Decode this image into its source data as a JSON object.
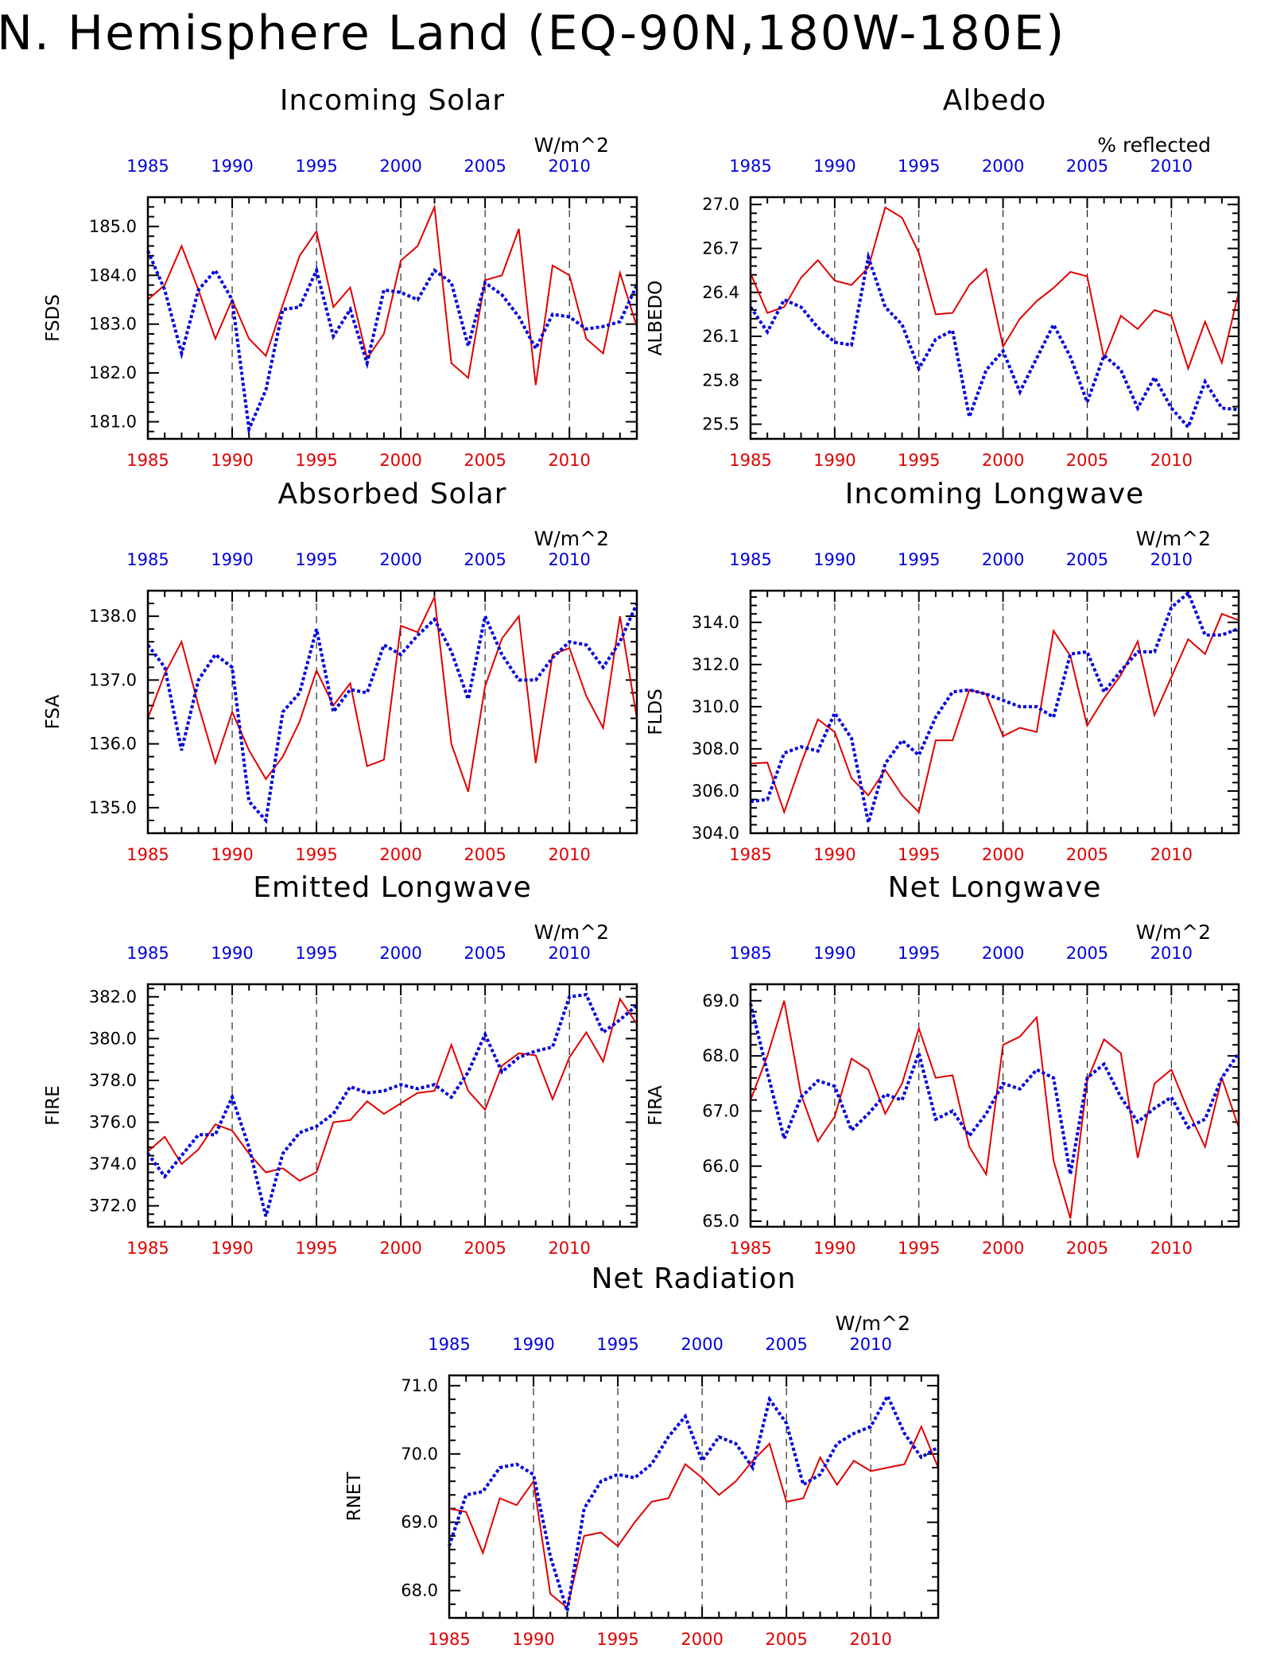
{
  "title": "N. Hemisphere Land (EQ-90N,180W-180E)",
  "colors": {
    "red_series": "#e00000",
    "blue_series": "#0000dd",
    "axis": "#000000"
  },
  "chart_data": [
    {
      "type": "line",
      "title": "Incoming Solar",
      "units": "W/m^2",
      "ylabel": "FSDS",
      "xlim": [
        1985,
        2014
      ],
      "ylim": [
        180.65,
        185.6
      ],
      "yticks": [
        "181.0",
        "182.0",
        "183.0",
        "184.0",
        "185.0"
      ],
      "ytick_values": [
        181,
        182,
        183,
        184,
        185
      ],
      "xticks": [
        "1985",
        "1990",
        "1995",
        "2000",
        "2005",
        "2010"
      ],
      "xtick_values": [
        1985,
        1990,
        1995,
        2000,
        2005,
        2010
      ],
      "x": [
        1985,
        1986,
        1987,
        1988,
        1989,
        1990,
        1991,
        1992,
        1993,
        1994,
        1995,
        1996,
        1997,
        1998,
        1999,
        2000,
        2001,
        2002,
        2003,
        2004,
        2005,
        2006,
        2007,
        2008,
        2009,
        2010,
        2011,
        2012,
        2013,
        2014
      ],
      "series": [
        {
          "style": "solid",
          "color": "#e00000",
          "values": [
            183.5,
            183.8,
            184.6,
            183.7,
            182.7,
            183.5,
            182.7,
            182.35,
            183.4,
            184.4,
            184.9,
            183.35,
            183.75,
            182.3,
            182.8,
            184.3,
            184.6,
            185.4,
            182.2,
            181.9,
            183.9,
            184.0,
            184.95,
            181.75,
            184.2,
            184.0,
            182.7,
            182.4,
            184.05,
            182.95
          ]
        },
        {
          "style": "dotted",
          "color": "#0000dd",
          "values": [
            184.5,
            183.7,
            182.4,
            183.7,
            184.1,
            183.5,
            180.85,
            181.65,
            183.3,
            183.35,
            184.1,
            182.75,
            183.3,
            182.2,
            183.7,
            183.65,
            183.5,
            184.1,
            183.85,
            182.55,
            183.85,
            183.6,
            183.15,
            182.5,
            183.2,
            183.15,
            182.9,
            182.95,
            183.05,
            183.8
          ]
        }
      ]
    },
    {
      "type": "line",
      "title": "Albedo",
      "units": "% reflected",
      "ylabel": "ALBEDO",
      "xlim": [
        1985,
        2014
      ],
      "ylim": [
        25.4,
        27.05
      ],
      "yticks": [
        "25.5",
        "25.8",
        "26.1",
        "26.4",
        "26.7",
        "27.0"
      ],
      "ytick_values": [
        25.5,
        25.8,
        26.1,
        26.4,
        26.7,
        27.0
      ],
      "xticks": [
        "1985",
        "1990",
        "1995",
        "2000",
        "2005",
        "2010"
      ],
      "xtick_values": [
        1985,
        1990,
        1995,
        2000,
        2005,
        2010
      ],
      "x": [
        1985,
        1986,
        1987,
        1988,
        1989,
        1990,
        1991,
        1992,
        1993,
        1994,
        1995,
        1996,
        1997,
        1998,
        1999,
        2000,
        2001,
        2002,
        2003,
        2004,
        2005,
        2006,
        2007,
        2008,
        2009,
        2010,
        2011,
        2012,
        2013,
        2014
      ],
      "series": [
        {
          "style": "solid",
          "color": "#e00000",
          "values": [
            26.53,
            26.26,
            26.3,
            26.5,
            26.62,
            26.48,
            26.45,
            26.57,
            26.98,
            26.91,
            26.67,
            26.25,
            26.26,
            26.45,
            26.56,
            26.03,
            26.22,
            26.34,
            26.43,
            26.54,
            26.51,
            25.95,
            26.24,
            26.15,
            26.28,
            26.24,
            25.88,
            26.2,
            25.92,
            26.4
          ]
        },
        {
          "style": "dotted",
          "color": "#0000dd",
          "values": [
            26.3,
            26.13,
            26.35,
            26.3,
            26.16,
            26.06,
            26.04,
            26.64,
            26.3,
            26.18,
            25.88,
            26.08,
            26.14,
            25.55,
            25.87,
            26.0,
            25.72,
            25.95,
            26.18,
            25.96,
            25.65,
            25.97,
            25.87,
            25.61,
            25.82,
            25.61,
            25.48,
            25.79,
            25.61,
            25.6
          ]
        }
      ]
    },
    {
      "type": "line",
      "title": "Absorbed Solar",
      "units": "W/m^2",
      "ylabel": "FSA",
      "xlim": [
        1985,
        2014
      ],
      "ylim": [
        134.6,
        138.4
      ],
      "yticks": [
        "135.0",
        "136.0",
        "137.0",
        "138.0"
      ],
      "ytick_values": [
        135,
        136,
        137,
        138
      ],
      "xticks": [
        "1985",
        "1990",
        "1995",
        "2000",
        "2005",
        "2010"
      ],
      "xtick_values": [
        1985,
        1990,
        1995,
        2000,
        2005,
        2010
      ],
      "x": [
        1985,
        1986,
        1987,
        1988,
        1989,
        1990,
        1991,
        1992,
        1993,
        1994,
        1995,
        1996,
        1997,
        1998,
        1999,
        2000,
        2001,
        2002,
        2003,
        2004,
        2005,
        2006,
        2007,
        2008,
        2009,
        2010,
        2011,
        2012,
        2013,
        2014
      ],
      "series": [
        {
          "style": "solid",
          "color": "#e00000",
          "values": [
            136.4,
            137.1,
            137.6,
            136.6,
            135.7,
            136.5,
            135.9,
            135.45,
            135.8,
            136.35,
            137.15,
            136.6,
            136.95,
            135.65,
            135.75,
            137.85,
            137.75,
            138.3,
            136.0,
            135.25,
            136.9,
            137.65,
            138.0,
            135.7,
            137.4,
            137.5,
            136.75,
            136.25,
            138.0,
            136.4
          ]
        },
        {
          "style": "dotted",
          "color": "#0000dd",
          "values": [
            137.55,
            137.2,
            135.9,
            137.0,
            137.4,
            137.2,
            135.1,
            134.8,
            136.5,
            136.8,
            137.8,
            136.5,
            136.85,
            136.8,
            137.55,
            137.4,
            137.7,
            137.95,
            137.45,
            136.7,
            138.0,
            137.4,
            137.0,
            137.0,
            137.35,
            137.6,
            137.55,
            137.2,
            137.6,
            138.2
          ]
        }
      ]
    },
    {
      "type": "line",
      "title": "Incoming Longwave",
      "units": "W/m^2",
      "ylabel": "FLDS",
      "xlim": [
        1985,
        2014
      ],
      "ylim": [
        304.0,
        315.5
      ],
      "yticks": [
        "304.0",
        "306.0",
        "308.0",
        "310.0",
        "312.0",
        "314.0"
      ],
      "ytick_values": [
        304,
        306,
        308,
        310,
        312,
        314
      ],
      "xticks": [
        "1985",
        "1990",
        "1995",
        "2000",
        "2005",
        "2010"
      ],
      "xtick_values": [
        1985,
        1990,
        1995,
        2000,
        2005,
        2010
      ],
      "x": [
        1985,
        1986,
        1987,
        1988,
        1989,
        1990,
        1991,
        1992,
        1993,
        1994,
        1995,
        1996,
        1997,
        1998,
        1999,
        2000,
        2001,
        2002,
        2003,
        2004,
        2005,
        2006,
        2007,
        2008,
        2009,
        2010,
        2011,
        2012,
        2013,
        2014
      ],
      "series": [
        {
          "style": "solid",
          "color": "#e00000",
          "values": [
            307.3,
            307.35,
            305.0,
            307.3,
            309.4,
            308.8,
            306.6,
            305.8,
            307.0,
            305.8,
            305.0,
            308.4,
            308.4,
            310.8,
            310.6,
            308.6,
            309.0,
            308.8,
            313.6,
            312.4,
            309.1,
            310.4,
            311.5,
            313.1,
            309.6,
            311.4,
            313.2,
            312.5,
            314.4,
            314.1
          ]
        },
        {
          "style": "dotted",
          "color": "#0000dd",
          "values": [
            305.5,
            305.6,
            307.8,
            308.1,
            307.9,
            309.7,
            308.5,
            304.5,
            307.3,
            308.4,
            307.7,
            309.5,
            310.7,
            310.8,
            310.6,
            310.3,
            310.0,
            310.0,
            309.5,
            312.5,
            312.6,
            310.7,
            311.7,
            312.6,
            312.6,
            314.7,
            315.4,
            313.4,
            313.4,
            313.7
          ]
        }
      ]
    },
    {
      "type": "line",
      "title": "Emitted Longwave",
      "units": "W/m^2",
      "ylabel": "FIRE",
      "xlim": [
        1985,
        2014
      ],
      "ylim": [
        371.0,
        382.6
      ],
      "yticks": [
        "372.0",
        "374.0",
        "376.0",
        "378.0",
        "380.0",
        "382.0"
      ],
      "ytick_values": [
        372,
        374,
        376,
        378,
        380,
        382
      ],
      "xticks": [
        "1985",
        "1990",
        "1995",
        "2000",
        "2005",
        "2010"
      ],
      "xtick_values": [
        1985,
        1990,
        1995,
        2000,
        2005,
        2010
      ],
      "x": [
        1985,
        1986,
        1987,
        1988,
        1989,
        1990,
        1991,
        1992,
        1993,
        1994,
        1995,
        1996,
        1997,
        1998,
        1999,
        2000,
        2001,
        2002,
        2003,
        2004,
        2005,
        2006,
        2007,
        2008,
        2009,
        2010,
        2011,
        2012,
        2013,
        2014
      ],
      "series": [
        {
          "style": "solid",
          "color": "#e00000",
          "values": [
            374.6,
            375.3,
            374.0,
            374.7,
            375.9,
            375.6,
            374.5,
            373.6,
            373.8,
            373.2,
            373.6,
            376.0,
            376.1,
            377.0,
            376.4,
            376.9,
            377.4,
            377.5,
            379.7,
            377.5,
            376.6,
            378.7,
            379.3,
            379.2,
            377.1,
            379.1,
            380.3,
            378.9,
            381.9,
            380.7
          ]
        },
        {
          "style": "dotted",
          "color": "#0000dd",
          "values": [
            374.5,
            373.4,
            374.4,
            375.4,
            375.4,
            377.2,
            374.8,
            371.5,
            374.5,
            375.5,
            375.8,
            376.4,
            377.7,
            377.4,
            377.5,
            377.8,
            377.6,
            377.8,
            377.2,
            378.4,
            380.2,
            378.4,
            379.1,
            379.4,
            379.6,
            382.0,
            382.1,
            380.3,
            380.9,
            381.6
          ]
        }
      ]
    },
    {
      "type": "line",
      "title": "Net Longwave",
      "units": "W/m^2",
      "ylabel": "FIRA",
      "xlim": [
        1985,
        2014
      ],
      "ylim": [
        64.9,
        69.3
      ],
      "yticks": [
        "65.0",
        "66.0",
        "67.0",
        "68.0",
        "69.0"
      ],
      "ytick_values": [
        65,
        66,
        67,
        68,
        69
      ],
      "xticks": [
        "1985",
        "1990",
        "1995",
        "2000",
        "2005",
        "2010"
      ],
      "xtick_values": [
        1985,
        1990,
        1995,
        2000,
        2005,
        2010
      ],
      "x": [
        1985,
        1986,
        1987,
        1988,
        1989,
        1990,
        1991,
        1992,
        1993,
        1994,
        1995,
        1996,
        1997,
        1998,
        1999,
        2000,
        2001,
        2002,
        2003,
        2004,
        2005,
        2006,
        2007,
        2008,
        2009,
        2010,
        2011,
        2012,
        2013,
        2014
      ],
      "series": [
        {
          "style": "solid",
          "color": "#e00000",
          "values": [
            67.2,
            68.0,
            69.0,
            67.3,
            66.45,
            66.9,
            67.95,
            67.75,
            66.95,
            67.5,
            68.5,
            67.6,
            67.65,
            66.35,
            65.85,
            68.2,
            68.35,
            68.7,
            66.1,
            65.05,
            67.55,
            68.3,
            68.05,
            66.15,
            67.5,
            67.75,
            67.0,
            66.35,
            67.6,
            66.7
          ]
        },
        {
          "style": "dotted",
          "color": "#0000dd",
          "values": [
            68.95,
            67.7,
            66.5,
            67.25,
            67.55,
            67.45,
            66.65,
            66.95,
            67.3,
            67.2,
            68.05,
            66.85,
            67.0,
            66.55,
            66.95,
            67.5,
            67.4,
            67.75,
            67.6,
            65.85,
            67.6,
            67.85,
            67.25,
            66.8,
            67.05,
            67.25,
            66.7,
            66.85,
            67.6,
            68.05
          ]
        }
      ]
    },
    {
      "type": "line",
      "title": "Net Radiation",
      "units": "W/m^2",
      "ylabel": "RNET",
      "xlim": [
        1985,
        2014
      ],
      "ylim": [
        67.6,
        71.15
      ],
      "yticks": [
        "68.0",
        "69.0",
        "70.0",
        "71.0"
      ],
      "ytick_values": [
        68,
        69,
        70,
        71
      ],
      "xticks": [
        "1985",
        "1990",
        "1995",
        "2000",
        "2005",
        "2010"
      ],
      "xtick_values": [
        1985,
        1990,
        1995,
        2000,
        2005,
        2010
      ],
      "x": [
        1985,
        1986,
        1987,
        1988,
        1989,
        1990,
        1991,
        1992,
        1993,
        1994,
        1995,
        1996,
        1997,
        1998,
        1999,
        2000,
        2001,
        2002,
        2003,
        2004,
        2005,
        2006,
        2007,
        2008,
        2009,
        2010,
        2011,
        2012,
        2013,
        2014
      ],
      "series": [
        {
          "style": "solid",
          "color": "#e00000",
          "values": [
            69.2,
            69.15,
            68.55,
            69.35,
            69.25,
            69.6,
            67.95,
            67.75,
            68.8,
            68.85,
            68.65,
            69.0,
            69.3,
            69.35,
            69.85,
            69.65,
            69.4,
            69.6,
            69.9,
            70.15,
            69.3,
            69.35,
            69.95,
            69.55,
            69.9,
            69.75,
            69.8,
            69.85,
            70.4,
            69.8
          ]
        },
        {
          "style": "dotted",
          "color": "#0000dd",
          "values": [
            68.65,
            69.4,
            69.45,
            69.8,
            69.85,
            69.7,
            68.5,
            67.7,
            69.2,
            69.6,
            69.7,
            69.65,
            69.85,
            70.25,
            70.55,
            69.9,
            70.25,
            70.15,
            69.8,
            70.8,
            70.45,
            69.55,
            69.7,
            70.15,
            70.3,
            70.4,
            70.85,
            70.3,
            69.95,
            70.1
          ]
        }
      ]
    }
  ]
}
